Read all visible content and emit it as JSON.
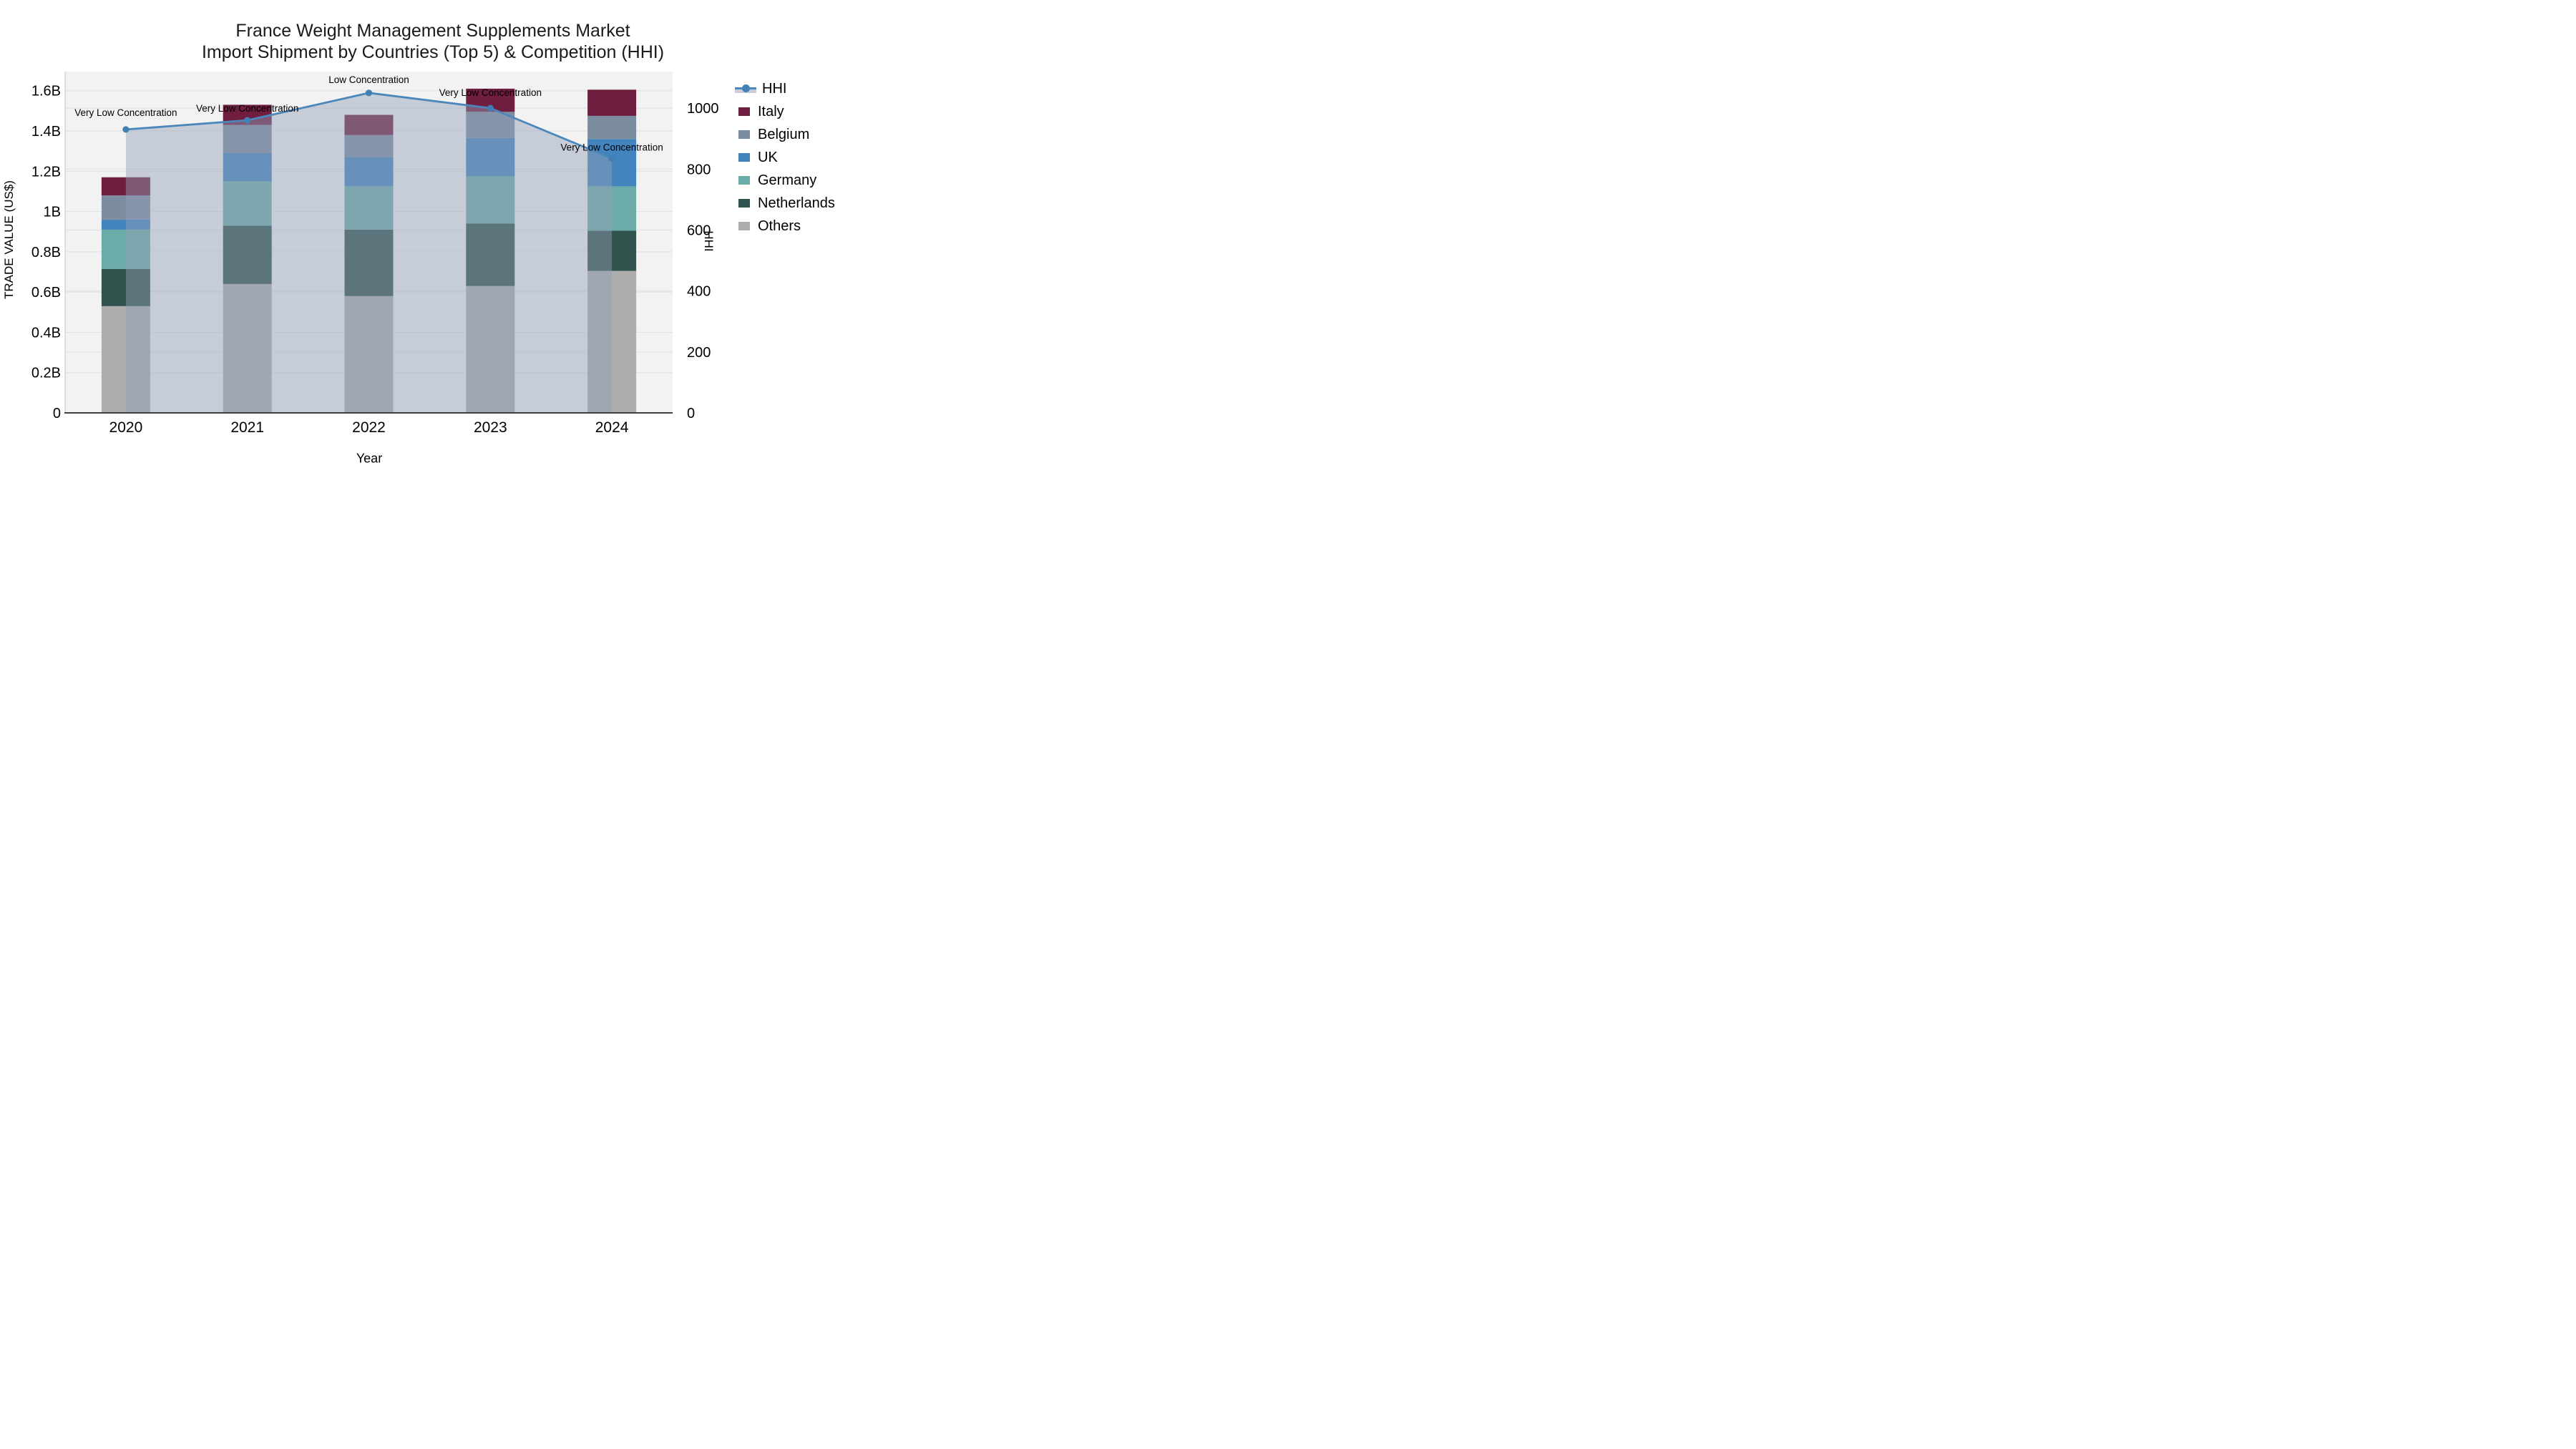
{
  "title": {
    "line1": "France Weight Management Supplements Market",
    "line2": "Import Shipment by Countries (Top 5) & Competition (HHI)"
  },
  "chart_data": {
    "type": "bar",
    "subtype": "stacked-bars-with-line-overlay",
    "title": "France Weight Management Supplements Market Import Shipment by Countries (Top 5) & Competition (HHI)",
    "xlabel": "Year",
    "ylabel_left": "TRADE VALUE (US$)",
    "ylabel_right": "HHI",
    "categories": [
      "2020",
      "2021",
      "2022",
      "2023",
      "2024"
    ],
    "value_unit": "billions of US$",
    "stack_order_bottom_to_top": [
      "Others",
      "Netherlands",
      "Germany",
      "UK",
      "Belgium",
      "Italy"
    ],
    "series": [
      {
        "name": "Italy",
        "color": "#6F1E40",
        "values": [
          0.09,
          0.1,
          0.1,
          0.115,
          0.13
        ]
      },
      {
        "name": "Belgium",
        "color": "#7D8DA0",
        "values": [
          0.12,
          0.14,
          0.11,
          0.13,
          0.115
        ]
      },
      {
        "name": "UK",
        "color": "#4484BE",
        "values": [
          0.05,
          0.14,
          0.145,
          0.19,
          0.235
        ]
      },
      {
        "name": "Germany",
        "color": "#6CACA8",
        "values": [
          0.195,
          0.22,
          0.215,
          0.235,
          0.22
        ]
      },
      {
        "name": "Netherlands",
        "color": "#30534E",
        "values": [
          0.185,
          0.29,
          0.33,
          0.31,
          0.2
        ]
      },
      {
        "name": "Others",
        "color": "#ADADAD",
        "values": [
          0.53,
          0.64,
          0.58,
          0.63,
          0.705
        ]
      }
    ],
    "bar_totals": [
      1.17,
      1.53,
      1.48,
      1.61,
      1.605
    ],
    "hhi_line": {
      "name": "HHI",
      "line_color": "#4C87BB",
      "marker_color": "#4180B5",
      "area_fill_color": "#939FB7",
      "area_fill_opacity": 0.45,
      "values": [
        930,
        960,
        1050,
        1000,
        835
      ]
    },
    "annotations": [
      {
        "category": "2020",
        "label": "Very Low Concentration"
      },
      {
        "category": "2021",
        "label": "Very Low Concentration"
      },
      {
        "category": "2022",
        "label": "Low Concentration"
      },
      {
        "category": "2023",
        "label": "Very Low Concentration"
      },
      {
        "category": "2024",
        "label": "Very Low Concentration"
      }
    ],
    "axes": {
      "left": {
        "tick_labels": [
          "0",
          "0.2B",
          "0.4B",
          "0.6B",
          "0.8B",
          "1B",
          "1.2B",
          "1.4B",
          "1.6B"
        ],
        "tick_values": [
          0,
          0.2,
          0.4,
          0.6,
          0.8,
          1.0,
          1.2,
          1.4,
          1.6
        ],
        "axis_max": 1.695
      },
      "right": {
        "tick_labels": [
          "0",
          "200",
          "400",
          "600",
          "800",
          "1000"
        ],
        "tick_values": [
          0,
          200,
          400,
          600,
          800,
          1000
        ],
        "axis_max": 1120
      }
    },
    "legend_position": "right",
    "grid": true,
    "plot_bg_color": "#F2F2F3",
    "gridline_color": "#E3E3E5",
    "spine_color": "#3F3F3F",
    "legend_order": [
      "HHI",
      "Italy",
      "Belgium",
      "UK",
      "Germany",
      "Netherlands",
      "Others"
    ]
  }
}
